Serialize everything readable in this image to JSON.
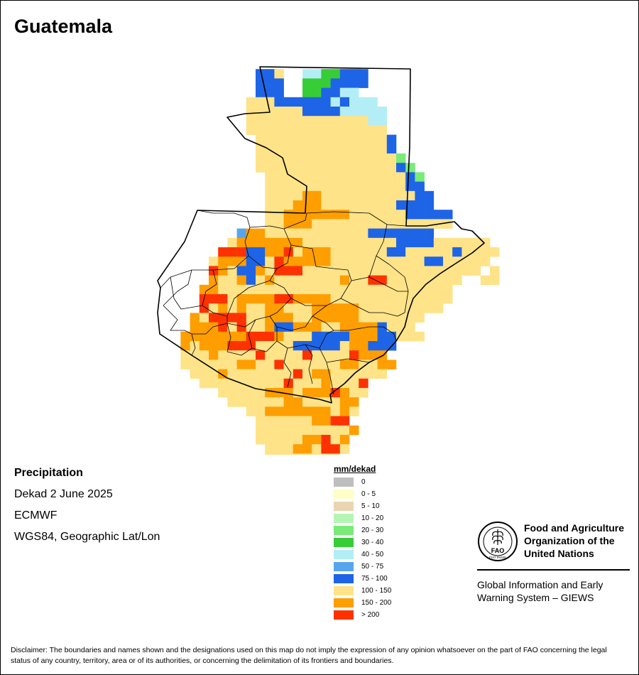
{
  "map": {
    "title": "Guatemala",
    "variable": "Precipitation",
    "period": "Dekad 2 June 2025",
    "source": "ECMWF",
    "projection": "WGS84, Geographic Lat/Lon"
  },
  "legend": {
    "title": "mm/dekad",
    "classes": [
      {
        "label": "0",
        "color": "#bebebe"
      },
      {
        "label": "0 - 5",
        "color": "#fefec6"
      },
      {
        "label": "5 - 10",
        "color": "#ead5b2"
      },
      {
        "label": "10 - 20",
        "color": "#b4f5b4"
      },
      {
        "label": "20 - 30",
        "color": "#78eb78"
      },
      {
        "label": "30 - 40",
        "color": "#37cd37"
      },
      {
        "label": "40 - 50",
        "color": "#b3eef7"
      },
      {
        "label": "50 - 75",
        "color": "#57a5ef"
      },
      {
        "label": "75 - 100",
        "color": "#1e64e6"
      },
      {
        "label": "100 - 150",
        "color": "#fee388"
      },
      {
        "label": "150 - 200",
        "color": "#fe9e00"
      },
      {
        "label": "> 200",
        "color": "#fe3200"
      }
    ]
  },
  "grid": {
    "rows": [
      "....................................",
      "..........889..6655888..............",
      "..........888..5558888..............",
      "..........888..558866...............",
      ".........99988888868666.............",
      ".........999999888866666............",
      ".........999999999999966............",
      ".........999999999999999............",
      "..........999999999999998...........",
      "..........999999999999998...........",
      "..........9999999999999994..........",
      "..........99999999999999984.........",
      "...........99999999999999984........",
      "...........99999999999999988........",
      "...........9999AA999999999988.......",
      "...........999AAA999999998888.......",
      "...........99AAAAAAA99999988888.....",
      "...........99AAA999999999999999.....",
      "........7AA999999999998888888.......",
      ".......9AAAAAAA99999999998888999999.",
      "......BBB88AAB9AAA999999889999989999.",
      ".....9AAA889BAAAAA99999999998899999.",
      ".....BA988A9BBB9999999999999999999.9",
      ".....A99A89A9999999A99BB99999999..99",
      "....AA9999999999999999999999999.....",
      "....BBB9AAAABBAAAA9999999999999.....",
      "....B9A9A99AA999AAAAA999999999......",
      "...A9BBBB99AAA99AAAAA9999999........",
      "...AAAB9B99A88AAA99AAAA8999.........",
      "..AAAAAAABBBA9998888AAA88999........",
      "..A9AAABBB9999888889AA888...........",
      "..999A9999B9999B9999BAAA............",
      "..999999AA99B999999AA99AA...........",
      "...999A9999999B9AA999999............",
      "....999999999B999A999B..............",
      "......99999AAA9AAABA99..............",
      ".......999999AA9999AA...............",
      ".........99AAAAAAA9A9...............",
      "..........999999AABB................",
      "..........9999999999A...............",
      "..........99999AAB9A................",
      "...........999AA9BB9................",
      "...........99999999.................",
      "............999999..................",
      "..............99....................",
      "...................................."
    ]
  },
  "fao": {
    "org_line1": "Food and Agriculture",
    "org_line2": "Organization of the",
    "org_line3": "United Nations",
    "giews_line1": "Global Information and Early",
    "giews_line2": "Warning System – GIEWS",
    "emblem_letters": "FAO",
    "emblem_motto": "FIAT PANIS"
  },
  "disclaimer": "Disclaimer: The boundaries and names shown and the designations used on this map do not imply the expression of any opinion whatsoever on the part of FAO concerning the legal status of any country, territory, area or of its authorities, or concerning the delimitation of its frontiers and boundaries."
}
